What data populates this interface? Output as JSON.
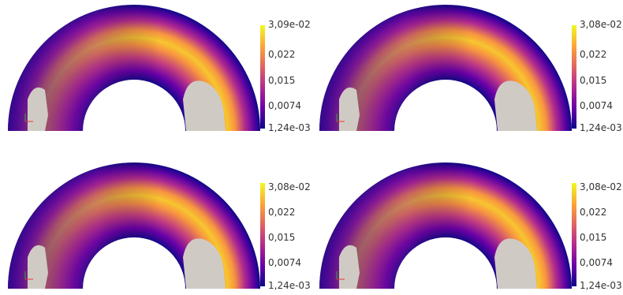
{
  "colormap": {
    "name": "plasma",
    "stops": [
      "#0d0887",
      "#6a00a8",
      "#b12a90",
      "#e16462",
      "#fca636",
      "#f0f921"
    ]
  },
  "inclusion_color": "#cfcbc4",
  "panels": [
    {
      "id": "top-left",
      "colorbar": {
        "max": "3,09e-02",
        "t1": "0,022",
        "t2": "0,015",
        "t3": "0,0074",
        "min": "1,24e-03"
      }
    },
    {
      "id": "top-right",
      "colorbar": {
        "max": "3,08e-02",
        "t1": "0,022",
        "t2": "0,015",
        "t3": "0,0074",
        "min": "1,24e-03"
      }
    },
    {
      "id": "bottom-left",
      "colorbar": {
        "max": "3,08e-02",
        "t1": "0,022",
        "t2": "0,015",
        "t3": "0,0074",
        "min": "1,24e-03"
      }
    },
    {
      "id": "bottom-right",
      "colorbar": {
        "max": "3,08e-02",
        "t1": "0,022",
        "t2": "0,015",
        "t3": "0,0074",
        "min": "1,24e-03"
      }
    }
  ]
}
